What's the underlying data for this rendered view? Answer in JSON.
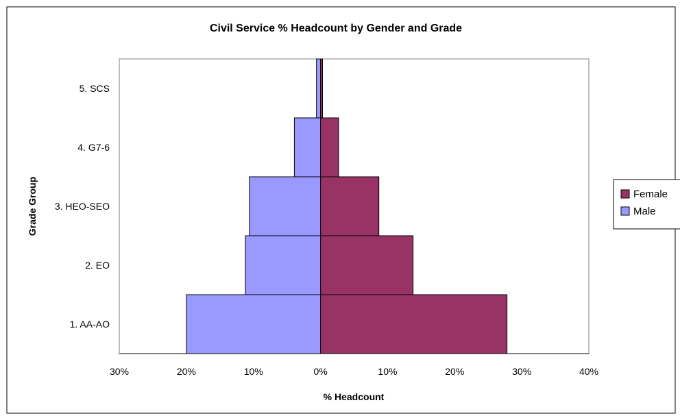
{
  "chart_data": {
    "type": "bar",
    "orientation": "horizontal",
    "title": "Civil Service % Headcount by Gender and Grade",
    "xlabel": "% Headcount",
    "ylabel": "Grade Group",
    "categories": [
      "1. AA-AO",
      "2. EO",
      "3. HEO-SEO",
      "4. G7-6",
      "5. SCS"
    ],
    "x_ticks": [
      "30%",
      "20%",
      "10%",
      "0%",
      "10%",
      "20%",
      "30%",
      "40%"
    ],
    "xlim": [
      -30,
      40
    ],
    "series": [
      {
        "name": "Female",
        "side": "right",
        "color": "#993366",
        "values": [
          27.8,
          13.8,
          8.7,
          2.7,
          0.3
        ]
      },
      {
        "name": "Male",
        "side": "left",
        "color": "#9999ff",
        "values": [
          20.0,
          11.2,
          10.6,
          3.9,
          0.6
        ]
      }
    ],
    "legend": {
      "position": "right",
      "entries": [
        "Female",
        "Male"
      ]
    },
    "grid": false
  }
}
